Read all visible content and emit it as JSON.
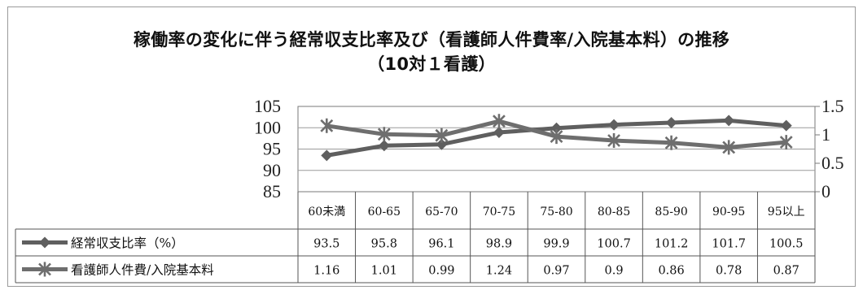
{
  "title_line1": "稼働率の変化に伴う経常収支比率及び（看護師人件費率/入院基本料）の推移",
  "title_line2": "（10対１看護）",
  "chart_data": {
    "type": "line",
    "title": "稼働率の変化に伴う経常収支比率及び（看護師人件費率/入院基本料）の推移（10対１看護）",
    "categories": [
      "60未満",
      "60-65",
      "65-70",
      "70-75",
      "75-80",
      "80-85",
      "85-90",
      "90-95",
      "95以上"
    ],
    "y_left": {
      "min": 85,
      "max": 105,
      "ticks": [
        "85",
        "90",
        "95",
        "100",
        "105"
      ]
    },
    "y_right": {
      "min": 0,
      "max": 1.5,
      "ticks": [
        "0",
        "0.5",
        "1",
        "1.5"
      ]
    },
    "series": [
      {
        "name": "経常収支比率（%）",
        "axis": "left",
        "values": [
          93.5,
          95.8,
          96.1,
          98.9,
          99.9,
          100.7,
          101.2,
          101.7,
          100.5
        ],
        "labels": [
          "93.5",
          "95.8",
          "96.1",
          "98.9",
          "99.9",
          "100.7",
          "101.2",
          "101.7",
          "100.5"
        ],
        "marker": "diamond",
        "color": "#5f5f5f"
      },
      {
        "name": "看護師人件費/入院基本料",
        "axis": "right",
        "values": [
          1.16,
          1.01,
          0.99,
          1.24,
          0.97,
          0.9,
          0.86,
          0.78,
          0.87
        ],
        "labels": [
          "1.16",
          "1.01",
          "0.99",
          "1.24",
          "0.97",
          "0.9",
          "0.86",
          "0.78",
          "0.87"
        ],
        "marker": "star",
        "color": "#6e6e6e"
      }
    ],
    "grid": true,
    "legend": "data-table"
  }
}
